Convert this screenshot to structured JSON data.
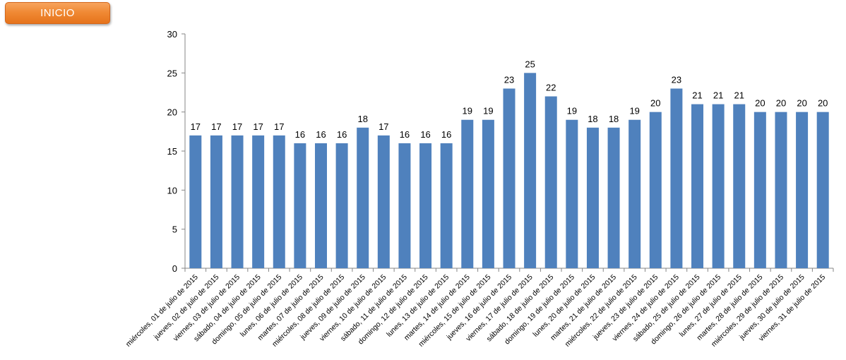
{
  "header": {
    "inicio_label": "INICIO"
  },
  "colors": {
    "bar": "#4f81bd",
    "button": "#f08a35",
    "axis": "#868686"
  },
  "chart_data": {
    "type": "bar",
    "categories": [
      "miércoles, 01 de julio de 2015",
      "jueves, 02 de julio de 2015",
      "viernes, 03 de julio de 2015",
      "sábado, 04 de julio de 2015",
      "domingo, 05 de julio de 2015",
      "lunes, 06 de julio de 2015",
      "martes, 07 de julio de 2015",
      "miércoles, 08 de julio de 2015",
      "jueves, 09 de julio de 2015",
      "viernes, 10 de julio de 2015",
      "sábado, 11 de julio de 2015",
      "domingo, 12 de julio de 2015",
      "lunes, 13 de julio de 2015",
      "martes, 14 de julio de 2015",
      "miércoles, 15 de julio de 2015",
      "jueves, 16 de julio de 2015",
      "viernes, 17 de julio de 2015",
      "sábado, 18 de julio de 2015",
      "domingo, 19 de julio de 2015",
      "lunes, 20 de julio de 2015",
      "martes, 21 de julio de 2015",
      "miércoles, 22 de julio de 2015",
      "jueves, 23 de julio de 2015",
      "viernes, 24 de julio de 2015",
      "sábado, 25 de julio de 2015",
      "domingo, 26 de julio de 2015",
      "lunes, 27 de julio de 2015",
      "martes, 28 de julio de 2015",
      "miércoles, 29 de julio de 2015",
      "jueves, 30 de julio de 2015",
      "viernes, 31 de julio de 2015"
    ],
    "values": [
      17,
      17,
      17,
      17,
      17,
      16,
      16,
      16,
      18,
      17,
      16,
      16,
      16,
      19,
      19,
      23,
      25,
      22,
      19,
      18,
      18,
      19,
      20,
      23,
      21,
      21,
      21,
      20,
      20,
      20,
      20
    ],
    "ylim": [
      0,
      30
    ],
    "yticks": [
      0,
      5,
      10,
      15,
      20,
      25,
      30
    ],
    "grid": false,
    "data_labels": true,
    "title": "",
    "xlabel": "",
    "ylabel": ""
  }
}
